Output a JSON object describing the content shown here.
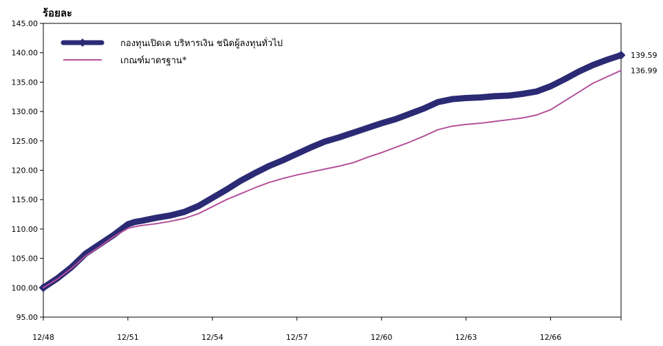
{
  "chart_data": {
    "type": "line",
    "title": "",
    "ylabel": "ร้อยละ",
    "xlabel": "",
    "ylim": [
      95,
      145
    ],
    "yticks": [
      "95.00",
      "100.00",
      "105.00",
      "110.00",
      "115.00",
      "120.00",
      "125.00",
      "130.00",
      "135.00",
      "140.00",
      "145.00"
    ],
    "x_tick_labels": [
      "12/48",
      "12/51",
      "12/54",
      "12/57",
      "12/60",
      "12/63",
      "12/66"
    ],
    "x_range": [
      0,
      20.5
    ],
    "grid": false,
    "legend_position": "top-left",
    "end_labels": [
      "139.59",
      "136.99"
    ],
    "series": [
      {
        "name": "กองทุนเปิดเค บริหารเงิน ชนิดผู้ลงทุนทั่วไป",
        "color": "#2b2a74",
        "style": "thick-marker-line",
        "x": [
          0,
          0.5,
          1,
          1.5,
          2,
          2.5,
          3,
          3.25,
          3.5,
          4,
          4.5,
          5,
          5.5,
          6,
          6.5,
          7,
          7.5,
          8,
          8.5,
          9,
          9.5,
          10,
          10.5,
          11,
          11.5,
          12,
          12.5,
          13,
          13.5,
          14,
          14.5,
          15,
          15.5,
          16,
          16.5,
          17,
          17.5,
          18,
          18.5,
          19,
          19.5,
          20,
          20.5
        ],
        "values": [
          100.0,
          101.6,
          103.5,
          105.8,
          107.4,
          109.0,
          110.8,
          111.2,
          111.4,
          111.9,
          112.3,
          112.9,
          113.9,
          115.3,
          116.7,
          118.2,
          119.5,
          120.7,
          121.7,
          122.8,
          123.9,
          124.9,
          125.6,
          126.4,
          127.2,
          128.0,
          128.7,
          129.6,
          130.5,
          131.6,
          132.1,
          132.3,
          132.4,
          132.6,
          132.7,
          133.0,
          133.4,
          134.3,
          135.5,
          136.8,
          137.9,
          138.8,
          139.59
        ]
      },
      {
        "name": "เกณฑ์มาตรฐาน*",
        "color": "#b4509c",
        "style": "line",
        "x": [
          0,
          0.5,
          1,
          1.5,
          2,
          2.5,
          3,
          3.25,
          3.5,
          4,
          4.5,
          5,
          5.5,
          6,
          6.5,
          7,
          7.5,
          8,
          8.5,
          9,
          9.5,
          10,
          10.5,
          11,
          11.5,
          12,
          12.5,
          13,
          13.5,
          14,
          14.5,
          15,
          15.5,
          16,
          16.5,
          17,
          17.5,
          18,
          18.5,
          19,
          19.5,
          20,
          20.5
        ],
        "values": [
          100.0,
          101.5,
          103.3,
          105.4,
          107.0,
          108.7,
          110.1,
          110.4,
          110.6,
          110.9,
          111.3,
          111.8,
          112.6,
          113.8,
          115.0,
          116.0,
          117.0,
          117.9,
          118.6,
          119.2,
          119.7,
          120.2,
          120.7,
          121.3,
          122.2,
          123.0,
          123.9,
          124.8,
          125.8,
          126.9,
          127.5,
          127.8,
          128.0,
          128.3,
          128.6,
          128.9,
          129.4,
          130.3,
          131.8,
          133.3,
          134.8,
          135.9,
          136.99
        ]
      }
    ]
  }
}
